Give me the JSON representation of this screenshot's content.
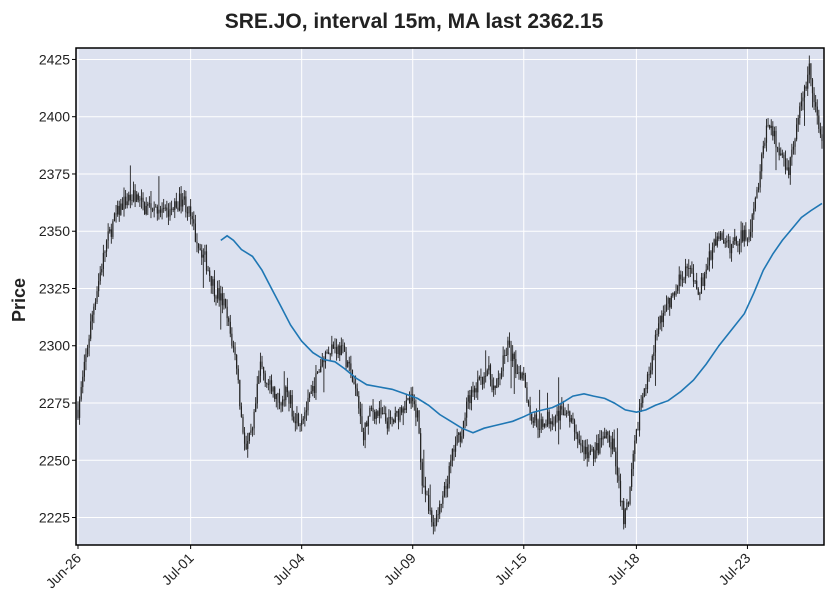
{
  "chart_data": {
    "type": "candlestick",
    "title": "SRE.JO, interval 15m, MA last 2362.15",
    "ylabel": "Price",
    "xlabel": "",
    "ylim": [
      2213,
      2430
    ],
    "yticks": [
      2225,
      2250,
      2275,
      2300,
      2325,
      2350,
      2375,
      2400,
      2425
    ],
    "xtick_labels": [
      "Jun-26",
      "Jul-01",
      "Jul-04",
      "Jul-09",
      "Jul-15",
      "Jul-18",
      "Jul-23"
    ],
    "xtick_bar_index": [
      0,
      71,
      141,
      211,
      281,
      352,
      422
    ],
    "n_bars": 470,
    "grid": true,
    "price_path": [
      [
        0,
        2272
      ],
      [
        3,
        2285
      ],
      [
        6,
        2300
      ],
      [
        10,
        2318
      ],
      [
        14,
        2332
      ],
      [
        18,
        2345
      ],
      [
        23,
        2355
      ],
      [
        28,
        2362
      ],
      [
        35,
        2366
      ],
      [
        42,
        2360
      ],
      [
        48,
        2362
      ],
      [
        55,
        2357
      ],
      [
        60,
        2360
      ],
      [
        66,
        2365
      ],
      [
        70,
        2358
      ],
      [
        74,
        2348
      ],
      [
        80,
        2338
      ],
      [
        86,
        2325
      ],
      [
        92,
        2318
      ],
      [
        96,
        2305
      ],
      [
        100,
        2292
      ],
      [
        103,
        2268
      ],
      [
        106,
        2255
      ],
      [
        110,
        2262
      ],
      [
        115,
        2292
      ],
      [
        120,
        2283
      ],
      [
        126,
        2276
      ],
      [
        132,
        2280
      ],
      [
        136,
        2270
      ],
      [
        140,
        2268
      ],
      [
        145,
        2274
      ],
      [
        150,
        2285
      ],
      [
        155,
        2296
      ],
      [
        160,
        2300
      ],
      [
        166,
        2298
      ],
      [
        170,
        2293
      ],
      [
        175,
        2280
      ],
      [
        180,
        2262
      ],
      [
        185,
        2272
      ],
      [
        190,
        2270
      ],
      [
        196,
        2266
      ],
      [
        200,
        2268
      ],
      [
        205,
        2275
      ],
      [
        210,
        2276
      ],
      [
        214,
        2270
      ],
      [
        217,
        2242
      ],
      [
        221,
        2228
      ],
      [
        224,
        2222
      ],
      [
        228,
        2228
      ],
      [
        232,
        2238
      ],
      [
        237,
        2255
      ],
      [
        242,
        2263
      ],
      [
        246,
        2276
      ],
      [
        250,
        2280
      ],
      [
        254,
        2285
      ],
      [
        258,
        2290
      ],
      [
        263,
        2280
      ],
      [
        267,
        2290
      ],
      [
        271,
        2300
      ],
      [
        276,
        2290
      ],
      [
        281,
        2288
      ],
      [
        285,
        2270
      ],
      [
        290,
        2266
      ],
      [
        296,
        2268
      ],
      [
        302,
        2270
      ],
      [
        307,
        2272
      ],
      [
        312,
        2265
      ],
      [
        318,
        2255
      ],
      [
        323,
        2252
      ],
      [
        327,
        2255
      ],
      [
        332,
        2260
      ],
      [
        337,
        2256
      ],
      [
        341,
        2240
      ],
      [
        344,
        2225
      ],
      [
        347,
        2230
      ],
      [
        350,
        2250
      ],
      [
        354,
        2272
      ],
      [
        358,
        2282
      ],
      [
        362,
        2296
      ],
      [
        367,
        2312
      ],
      [
        372,
        2318
      ],
      [
        376,
        2322
      ],
      [
        380,
        2330
      ],
      [
        384,
        2335
      ],
      [
        388,
        2327
      ],
      [
        392,
        2324
      ],
      [
        396,
        2334
      ],
      [
        400,
        2342
      ],
      [
        404,
        2348
      ],
      [
        407,
        2344
      ],
      [
        411,
        2343
      ],
      [
        415,
        2346
      ],
      [
        419,
        2348
      ],
      [
        423,
        2350
      ],
      [
        427,
        2362
      ],
      [
        430,
        2375
      ],
      [
        433,
        2392
      ],
      [
        436,
        2398
      ],
      [
        440,
        2388
      ],
      [
        444,
        2382
      ],
      [
        448,
        2378
      ],
      [
        452,
        2392
      ],
      [
        455,
        2402
      ],
      [
        458,
        2412
      ],
      [
        461,
        2422
      ],
      [
        464,
        2405
      ],
      [
        467,
        2396
      ],
      [
        469,
        2390
      ]
    ],
    "series": [
      {
        "name": "MA",
        "color": "#1f77b4",
        "start_bar": 90,
        "points": [
          [
            90,
            2346
          ],
          [
            94,
            2348
          ],
          [
            98,
            2346
          ],
          [
            103,
            2342
          ],
          [
            110,
            2339
          ],
          [
            116,
            2333
          ],
          [
            122,
            2325
          ],
          [
            128,
            2317
          ],
          [
            134,
            2309
          ],
          [
            141,
            2302
          ],
          [
            148,
            2297
          ],
          [
            155,
            2294
          ],
          [
            162,
            2293
          ],
          [
            168,
            2290
          ],
          [
            175,
            2286
          ],
          [
            182,
            2283
          ],
          [
            190,
            2282
          ],
          [
            198,
            2281
          ],
          [
            206,
            2279
          ],
          [
            214,
            2277
          ],
          [
            221,
            2274
          ],
          [
            228,
            2270
          ],
          [
            235,
            2267
          ],
          [
            242,
            2264
          ],
          [
            249,
            2262
          ],
          [
            256,
            2264
          ],
          [
            262,
            2265
          ],
          [
            268,
            2266
          ],
          [
            274,
            2267
          ],
          [
            281,
            2269
          ],
          [
            287,
            2271
          ],
          [
            293,
            2272
          ],
          [
            299,
            2273
          ],
          [
            305,
            2275
          ],
          [
            312,
            2278
          ],
          [
            319,
            2279
          ],
          [
            325,
            2278
          ],
          [
            332,
            2277
          ],
          [
            338,
            2275
          ],
          [
            345,
            2272
          ],
          [
            352,
            2271
          ],
          [
            358,
            2272
          ],
          [
            364,
            2274
          ],
          [
            372,
            2276
          ],
          [
            380,
            2280
          ],
          [
            388,
            2285
          ],
          [
            396,
            2292
          ],
          [
            404,
            2300
          ],
          [
            412,
            2307
          ],
          [
            420,
            2314
          ],
          [
            426,
            2323
          ],
          [
            432,
            2333
          ],
          [
            438,
            2340
          ],
          [
            444,
            2346
          ],
          [
            450,
            2351
          ],
          [
            456,
            2356
          ],
          [
            462,
            2359
          ],
          [
            469,
            2362.15
          ]
        ]
      }
    ],
    "colors": {
      "background": "#dce1ef",
      "grid": "#ffffff",
      "candle": "#222222",
      "ma": "#1f77b4",
      "frame": "#000000"
    }
  }
}
